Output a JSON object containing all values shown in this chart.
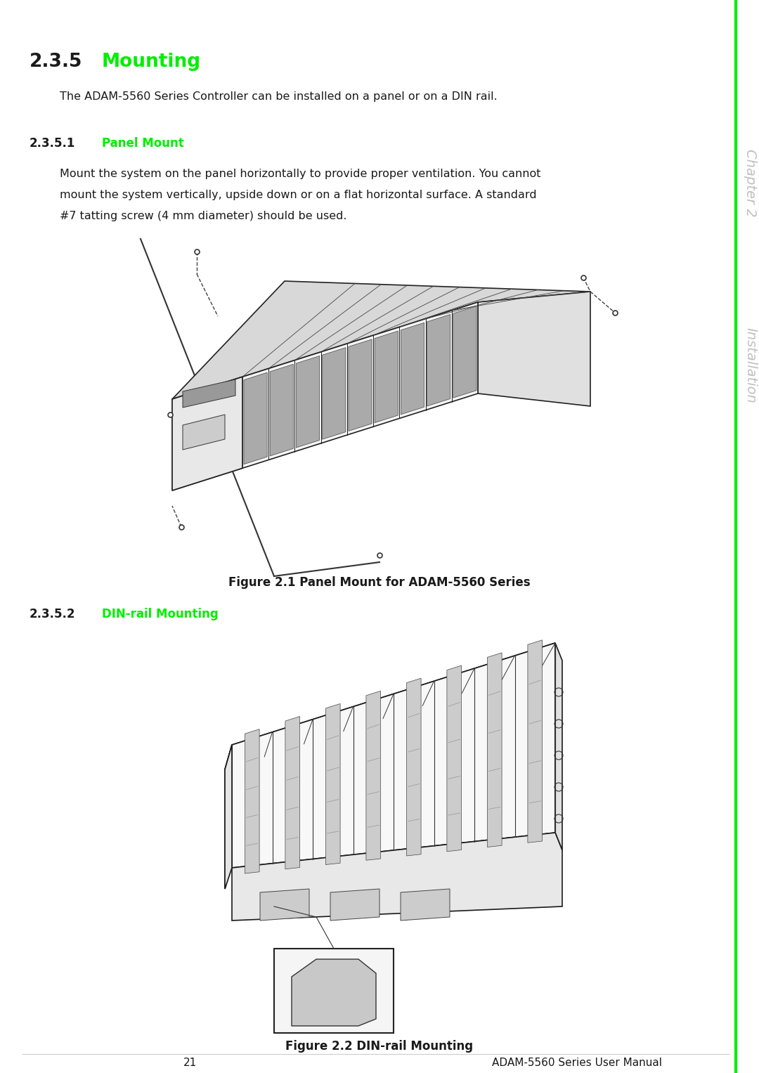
{
  "bg_color": "#ffffff",
  "page_width": 10.8,
  "page_height": 15.27,
  "green_color": "#00ee00",
  "black_color": "#1a1a1a",
  "gray_color": "#c0c0c0",
  "dark_gray": "#555555",
  "sidebar_green_line_color": "#00ee00",
  "section_heading": "2.3.5",
  "section_title": "Mounting",
  "intro_text": "The ADAM-5560 Series Controller can be installed on a panel or on a DIN rail.",
  "sub1_num": "2.3.5.1",
  "sub1_title": "Panel Mount",
  "sub1_body_line1": "Mount the system on the panel horizontally to provide proper ventilation. You cannot",
  "sub1_body_line2": "mount the system vertically, upside down or on a flat horizontal surface. A standard",
  "sub1_body_line3": "#7 tatting screw (4 mm diameter) should be used.",
  "fig1_caption": "Figure 2.1 Panel Mount for ADAM-5560 Series",
  "sub2_num": "2.3.5.2",
  "sub2_title": "DIN-rail Mounting",
  "fig2_caption": "Figure 2.2 DIN-rail Mounting",
  "footer_page": "21",
  "footer_manual": "ADAM-5560 Series User Manual",
  "sidebar_text1": "Chapter 2",
  "sidebar_text2": "Installation"
}
